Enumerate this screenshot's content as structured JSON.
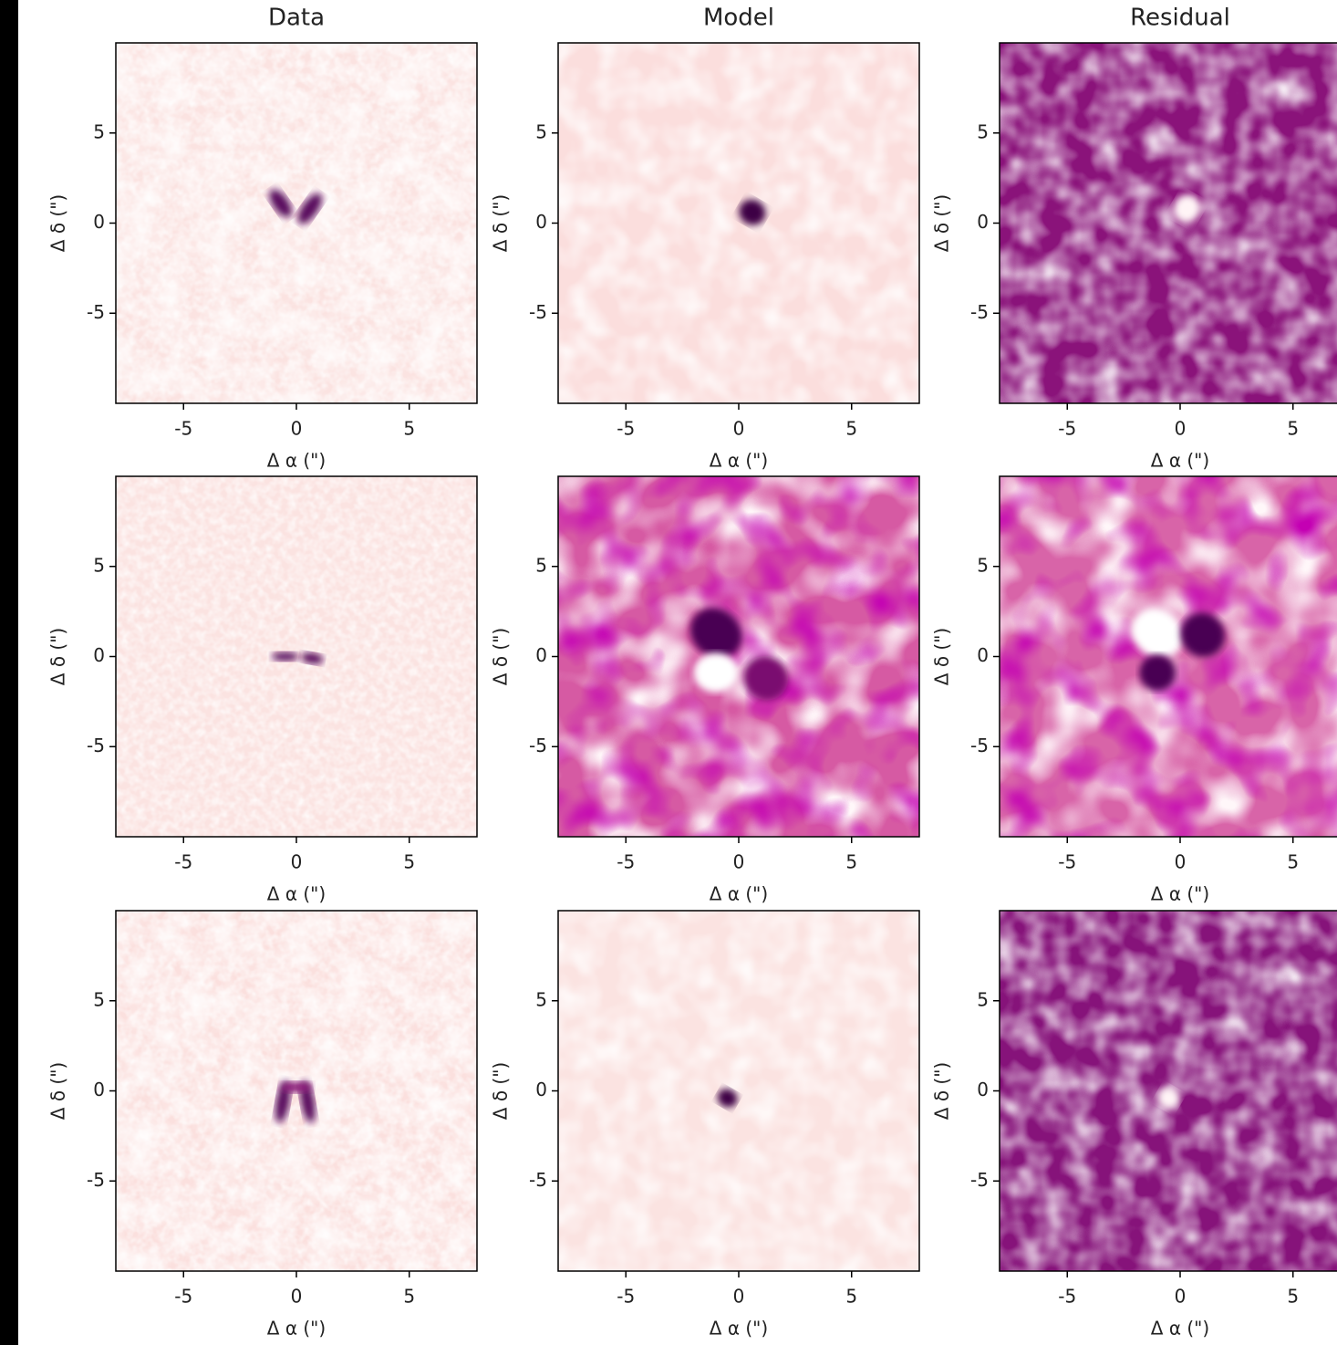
{
  "chart_data": [
    {
      "type": "image",
      "title": "Data",
      "xlabel": "Δ α (\")",
      "ylabel": "Δ δ (\")",
      "xlim": [
        -8,
        8
      ],
      "ylim": [
        -10,
        10
      ],
      "xticks": [
        -5,
        0,
        5
      ],
      "yticks": [
        -5,
        0,
        5
      ],
      "color": "#fbe3e1"
    },
    {
      "type": "image",
      "title": "Model",
      "xlabel": "Δ α (\")",
      "ylabel": "Δ δ (\")",
      "xlim": [
        -8,
        8
      ],
      "ylim": [
        -10,
        10
      ],
      "xticks": [
        -5,
        0,
        5
      ],
      "yticks": [
        -5,
        0,
        5
      ],
      "color": "#fbdedd"
    },
    {
      "type": "image",
      "title": "Residual",
      "xlabel": "Δ α (\")",
      "ylabel": "Δ δ (\")",
      "xlim": [
        -8,
        8
      ],
      "ylim": [
        -10,
        10
      ],
      "xticks": [
        -5,
        0,
        5
      ],
      "yticks": [
        -5,
        0,
        5
      ],
      "color": "#8a137a"
    },
    {
      "type": "image",
      "xlabel": "Δ α (\")",
      "ylabel": "Δ δ (\")",
      "xlim": [
        -8,
        8
      ],
      "ylim": [
        -10,
        10
      ],
      "xticks": [
        -5,
        0,
        5
      ],
      "yticks": [
        -5,
        0,
        5
      ],
      "color": "#fbe3e1"
    },
    {
      "type": "image",
      "xlabel": "Δ α (\")",
      "ylabel": "Δ δ (\")",
      "xlim": [
        -8,
        8
      ],
      "ylim": [
        -10,
        10
      ],
      "xticks": [
        -5,
        0,
        5
      ],
      "yticks": [
        -5,
        0,
        5
      ],
      "color": "#d65aa3"
    },
    {
      "type": "image",
      "xlabel": "Δ α (\")",
      "ylabel": "Δ δ (\")",
      "xlim": [
        -8,
        8
      ],
      "ylim": [
        -10,
        10
      ],
      "xticks": [
        -5,
        0,
        5
      ],
      "yticks": [
        -5,
        0,
        5
      ],
      "color": "#d864a8"
    },
    {
      "type": "image",
      "xlabel": "Δ α (\")",
      "ylabel": "Δ δ (\")",
      "xlim": [
        -8,
        8
      ],
      "ylim": [
        -10,
        10
      ],
      "xticks": [
        -5,
        0,
        5
      ],
      "yticks": [
        -5,
        0,
        5
      ],
      "color": "#fbe0de"
    },
    {
      "type": "image",
      "xlabel": "Δ α (\")",
      "ylabel": "Δ δ (\")",
      "xlim": [
        -8,
        8
      ],
      "ylim": [
        -10,
        10
      ],
      "xticks": [
        -5,
        0,
        5
      ],
      "yticks": [
        -5,
        0,
        5
      ],
      "color": "#fbe3e1"
    },
    {
      "type": "image",
      "xlabel": "Δ α (\")",
      "ylabel": "Δ δ (\")",
      "xlim": [
        -8,
        8
      ],
      "ylim": [
        -10,
        10
      ],
      "xticks": [
        -5,
        0,
        5
      ],
      "yticks": [
        -5,
        0,
        5
      ],
      "color": "#86137a"
    }
  ]
}
